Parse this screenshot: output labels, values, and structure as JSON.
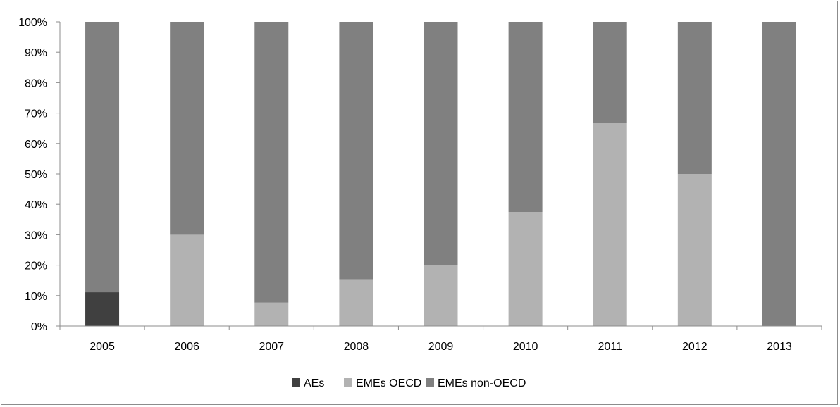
{
  "chart_data": {
    "type": "bar",
    "stacked": true,
    "percent": true,
    "categories": [
      "2005",
      "2006",
      "2007",
      "2008",
      "2009",
      "2010",
      "2011",
      "2012",
      "2013"
    ],
    "series": [
      {
        "name": "AEs",
        "color": "#404040",
        "values": [
          11.1,
          0,
          0,
          0,
          0,
          0,
          0,
          0,
          0
        ]
      },
      {
        "name": "EMEs OECD",
        "color": "#b2b2b2",
        "values": [
          0,
          30,
          7.7,
          15.4,
          20,
          37.5,
          66.7,
          50,
          0
        ]
      },
      {
        "name": "EMEs non-OECD",
        "color": "#808080",
        "values": [
          88.9,
          70,
          92.3,
          84.6,
          80,
          62.5,
          33.3,
          50,
          100
        ]
      }
    ],
    "yticks": [
      "0%",
      "10%",
      "20%",
      "30%",
      "40%",
      "50%",
      "60%",
      "70%",
      "80%",
      "90%",
      "100%"
    ],
    "ylim": [
      0,
      100
    ],
    "grid": false,
    "legend_position": "bottom"
  }
}
